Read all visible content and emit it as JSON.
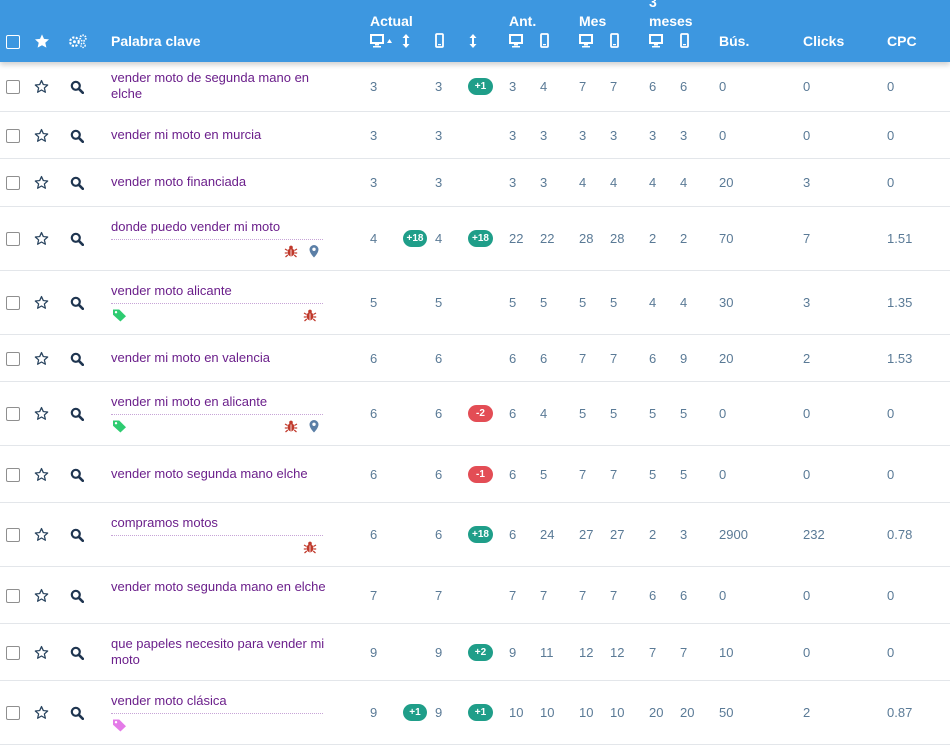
{
  "header": {
    "keyword": "Palabra clave",
    "actual": "Actual",
    "ant": "Ant.",
    "mes": "Mes",
    "three_meses_line1": "3",
    "three_meses_line2": "meses",
    "bus": "Bús.",
    "clicks": "Clicks",
    "cpc": "CPC"
  },
  "icons": {
    "favorite": "star-outline-icon",
    "search": "magnifier-icon",
    "settings": "gears-icon",
    "desktop": "monitor-icon",
    "mobile": "phone-icon",
    "bug": "bug-icon",
    "location": "map-pin-icon",
    "tag": "tag-icon"
  },
  "colors": {
    "header_bg": "#3d97e0",
    "keyword": "#6b1f8b",
    "value": "#5a7a96",
    "badge_up": "#1f9e89",
    "badge_down": "#e34d55",
    "bug": "#c0392b",
    "pin": "#5b7fa6",
    "tag_green": "#2ecc71",
    "tag_pink": "#e47be8"
  },
  "rows": [
    {
      "keyword": "vender moto de segunda mano en elche",
      "desk": "3",
      "desk_badge": "",
      "mob": "3",
      "change": "+1",
      "ant_d": "3",
      "ant_m": "4",
      "mes_d": "7",
      "mes_m": "7",
      "m3_d": "6",
      "m3_m": "6",
      "bus": "0",
      "clicks": "0",
      "cpc": "0",
      "tags": []
    },
    {
      "keyword": "vender mi moto en murcia",
      "desk": "3",
      "desk_badge": "",
      "mob": "3",
      "change": "",
      "ant_d": "3",
      "ant_m": "3",
      "mes_d": "3",
      "mes_m": "3",
      "m3_d": "3",
      "m3_m": "3",
      "bus": "0",
      "clicks": "0",
      "cpc": "0",
      "tags": []
    },
    {
      "keyword": "vender moto financiada",
      "desk": "3",
      "desk_badge": "",
      "mob": "3",
      "change": "",
      "ant_d": "3",
      "ant_m": "3",
      "mes_d": "4",
      "mes_m": "4",
      "m3_d": "4",
      "m3_m": "4",
      "bus": "20",
      "clicks": "3",
      "cpc": "0",
      "tags": []
    },
    {
      "keyword": "donde puedo vender mi moto",
      "desk": "4",
      "desk_badge": "+18",
      "mob": "4",
      "change": "+18",
      "ant_d": "22",
      "ant_m": "22",
      "mes_d": "28",
      "mes_m": "28",
      "m3_d": "2",
      "m3_m": "2",
      "bus": "70",
      "clicks": "7",
      "cpc": "1.51",
      "tags": [
        "bug",
        "pin"
      ]
    },
    {
      "keyword": "vender moto alicante",
      "desk": "5",
      "desk_badge": "",
      "mob": "5",
      "change": "",
      "ant_d": "5",
      "ant_m": "5",
      "mes_d": "5",
      "mes_m": "5",
      "m3_d": "4",
      "m3_m": "4",
      "bus": "30",
      "clicks": "3",
      "cpc": "1.35",
      "tags": [
        "tag-green",
        "bug"
      ]
    },
    {
      "keyword": "vender mi moto en valencia",
      "desk": "6",
      "desk_badge": "",
      "mob": "6",
      "change": "",
      "ant_d": "6",
      "ant_m": "6",
      "mes_d": "7",
      "mes_m": "7",
      "m3_d": "6",
      "m3_m": "9",
      "bus": "20",
      "clicks": "2",
      "cpc": "1.53",
      "tags": []
    },
    {
      "keyword": "vender mi moto en alicante",
      "desk": "6",
      "desk_badge": "",
      "mob": "6",
      "change": "-2",
      "ant_d": "6",
      "ant_m": "4",
      "mes_d": "5",
      "mes_m": "5",
      "m3_d": "5",
      "m3_m": "5",
      "bus": "0",
      "clicks": "0",
      "cpc": "0",
      "tags": [
        "tag-green",
        "bug",
        "pin"
      ]
    },
    {
      "keyword": "vender moto segunda mano elche",
      "desk": "6",
      "desk_badge": "",
      "mob": "6",
      "change": "-1",
      "ant_d": "6",
      "ant_m": "5",
      "mes_d": "7",
      "mes_m": "7",
      "m3_d": "5",
      "m3_m": "5",
      "bus": "0",
      "clicks": "0",
      "cpc": "0",
      "tags": []
    },
    {
      "keyword": "compramos motos",
      "desk": "6",
      "desk_badge": "",
      "mob": "6",
      "change": "+18",
      "ant_d": "6",
      "ant_m": "24",
      "mes_d": "27",
      "mes_m": "27",
      "m3_d": "2",
      "m3_m": "3",
      "bus": "2900",
      "clicks": "232",
      "cpc": "0.78",
      "tags": [
        "bug"
      ]
    },
    {
      "keyword": "vender moto segunda mano en elche",
      "desk": "7",
      "desk_badge": "",
      "mob": "7",
      "change": "",
      "ant_d": "7",
      "ant_m": "7",
      "mes_d": "7",
      "mes_m": "7",
      "m3_d": "6",
      "m3_m": "6",
      "bus": "0",
      "clicks": "0",
      "cpc": "0",
      "tags": []
    },
    {
      "keyword": "que papeles necesito para vender mi moto",
      "desk": "9",
      "desk_badge": "",
      "mob": "9",
      "change": "+2",
      "ant_d": "9",
      "ant_m": "11",
      "mes_d": "12",
      "mes_m": "12",
      "m3_d": "7",
      "m3_m": "7",
      "bus": "10",
      "clicks": "0",
      "cpc": "0",
      "tags": []
    },
    {
      "keyword": "vender moto clásica",
      "desk": "9",
      "desk_badge": "+1",
      "mob": "9",
      "change": "+1",
      "ant_d": "10",
      "ant_m": "10",
      "mes_d": "10",
      "mes_m": "10",
      "m3_d": "20",
      "m3_m": "20",
      "bus": "50",
      "clicks": "2",
      "cpc": "0.87",
      "tags": [
        "tag-pink"
      ]
    }
  ]
}
